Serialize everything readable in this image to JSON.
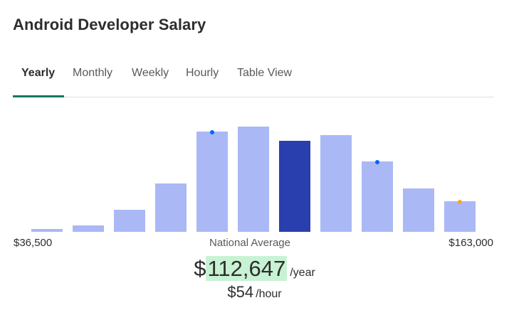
{
  "header": {
    "title": "Android Developer Salary"
  },
  "tabs": [
    {
      "label": "Yearly",
      "active": true
    },
    {
      "label": "Monthly",
      "active": false
    },
    {
      "label": "Weekly",
      "active": false
    },
    {
      "label": "Hourly",
      "active": false
    },
    {
      "label": "Table View",
      "active": false
    }
  ],
  "colors": {
    "bar": "#aab8f5",
    "bar_highlight": "#2a3fae",
    "dot_blue": "#0066ff",
    "dot_orange": "#f5a623",
    "tab_accent": "#0d7a5f",
    "value_highlight": "#c8f2d4"
  },
  "chart_data": {
    "type": "bar",
    "title": "",
    "values": [
      4,
      9,
      31,
      68,
      141,
      148,
      128,
      136,
      99,
      61,
      43
    ],
    "highlight_index": 6,
    "markers": [
      {
        "bar_index": 4,
        "color": "blue"
      },
      {
        "bar_index": 8,
        "color": "blue"
      },
      {
        "bar_index": 10,
        "color": "orange"
      }
    ],
    "ylim": [
      0,
      150
    ],
    "xlabel_min": "$36,500",
    "xlabel_mid": "National Average",
    "xlabel_max": "$163,000"
  },
  "summary": {
    "currency_symbol": "$",
    "yearly_value": "112,647",
    "yearly_unit": "/year",
    "hourly_value": "$54",
    "hourly_unit": "/hour"
  }
}
